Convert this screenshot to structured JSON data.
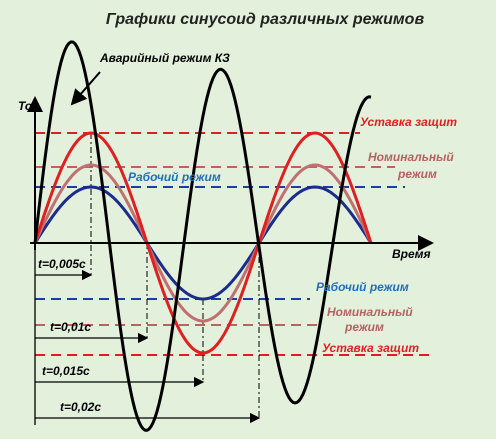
{
  "header": {
    "title": "Графики синусоид различных режимов"
  },
  "axes": {
    "y_label": "Ток",
    "x_label": "Время"
  },
  "annotations": {
    "emergency": "Аварийный режим КЗ",
    "upper": {
      "protection": "Уставка защит",
      "nominal_1": "Номинальный",
      "nominal_2": "режим",
      "working": "Рабочий режим"
    },
    "lower": {
      "working": "Рабочий режим",
      "nominal_1": "Номинальный",
      "nominal_2": "режим",
      "protection": "Уставка защит"
    }
  },
  "time_marks": [
    "t=0,005с",
    "t=0,01с",
    "t=0,015с",
    "t=0,02с"
  ]
}
